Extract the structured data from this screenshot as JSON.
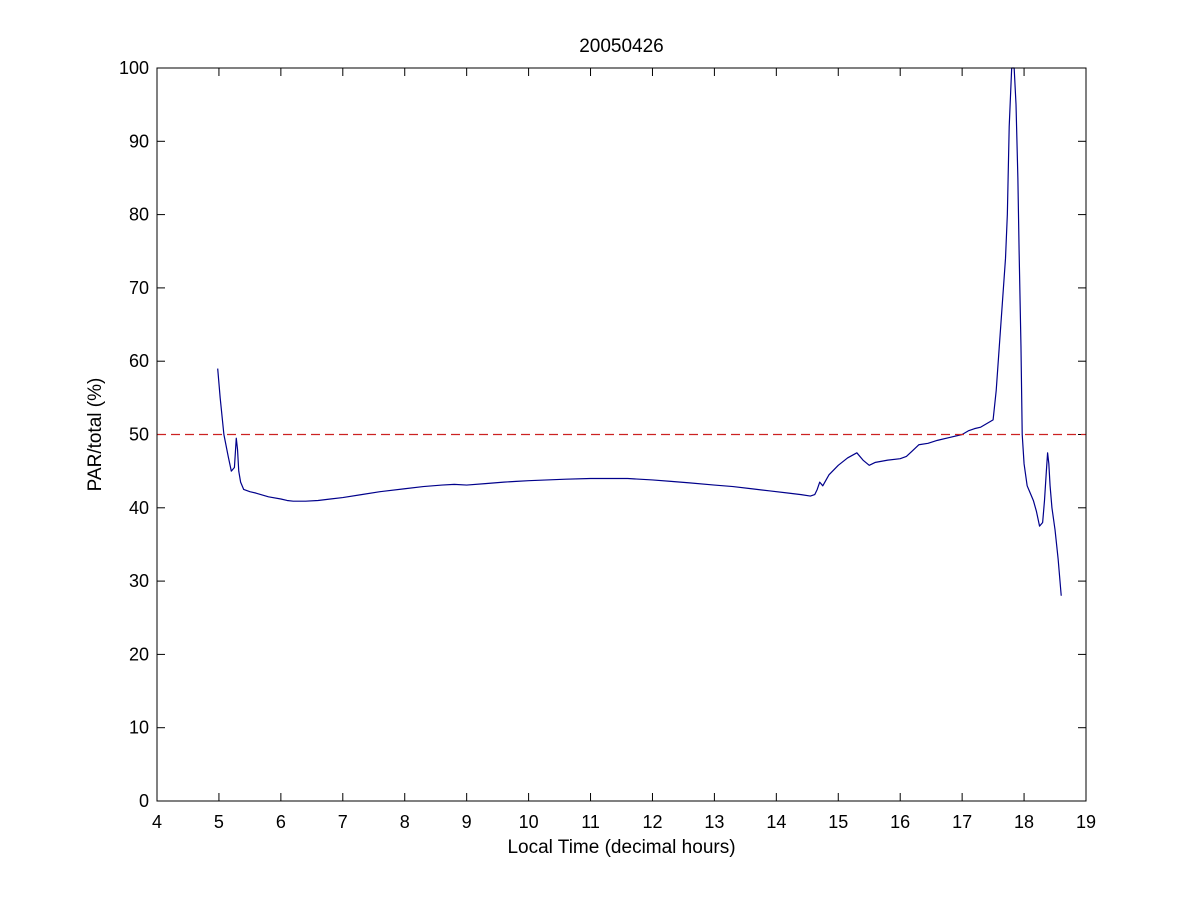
{
  "chart_data": {
    "type": "line",
    "title": "20050426",
    "xlabel": "Local Time (decimal hours)",
    "ylabel": "PAR/total (%)",
    "xlim": [
      4,
      19
    ],
    "ylim": [
      0,
      100
    ],
    "xticks": [
      4,
      5,
      6,
      7,
      8,
      9,
      10,
      11,
      12,
      13,
      14,
      15,
      16,
      17,
      18,
      19
    ],
    "yticks": [
      0,
      10,
      20,
      30,
      40,
      50,
      60,
      70,
      80,
      90,
      100
    ],
    "grid": false,
    "series": [
      {
        "color": "#00008b",
        "x": [
          4.98,
          5.02,
          5.08,
          5.15,
          5.2,
          5.25,
          5.28,
          5.3,
          5.32,
          5.35,
          5.4,
          5.5,
          5.6,
          5.8,
          6.0,
          6.1,
          6.2,
          6.4,
          6.6,
          6.8,
          7.0,
          7.3,
          7.6,
          8.0,
          8.3,
          8.6,
          8.8,
          9.0,
          9.3,
          9.6,
          9.8,
          10.0,
          10.3,
          10.6,
          11.0,
          11.3,
          11.6,
          12.0,
          12.3,
          12.6,
          13.0,
          13.3,
          13.6,
          13.9,
          14.2,
          14.4,
          14.55,
          14.62,
          14.66,
          14.7,
          14.75,
          14.85,
          15.0,
          15.15,
          15.3,
          15.4,
          15.5,
          15.6,
          15.8,
          16.0,
          16.1,
          16.2,
          16.3,
          16.45,
          16.6,
          16.8,
          17.0,
          17.1,
          17.2,
          17.3,
          17.4,
          17.5,
          17.55,
          17.6,
          17.65,
          17.7,
          17.73,
          17.76,
          17.8,
          17.84,
          17.87,
          17.9,
          17.92,
          17.95,
          17.97,
          18.0,
          18.05,
          18.1,
          18.15,
          18.2,
          18.25,
          18.3,
          18.33,
          18.36,
          18.38,
          18.4,
          18.42,
          18.45,
          18.5,
          18.55,
          18.6
        ],
        "y": [
          59,
          55,
          50,
          47,
          45,
          45.5,
          49.5,
          48,
          45,
          43.5,
          42.5,
          42.2,
          42.0,
          41.5,
          41.2,
          41.0,
          40.9,
          40.9,
          41.0,
          41.2,
          41.4,
          41.8,
          42.2,
          42.6,
          42.9,
          43.1,
          43.2,
          43.1,
          43.3,
          43.5,
          43.6,
          43.7,
          43.8,
          43.9,
          44.0,
          44.0,
          44.0,
          43.8,
          43.6,
          43.4,
          43.1,
          42.9,
          42.6,
          42.3,
          42.0,
          41.8,
          41.6,
          41.8,
          42.5,
          43.5,
          43,
          44.5,
          45.8,
          46.8,
          47.5,
          46.5,
          45.8,
          46.2,
          46.5,
          46.7,
          47,
          47.8,
          48.6,
          48.8,
          49.2,
          49.6,
          50.0,
          50.5,
          50.8,
          51.0,
          51.5,
          52.0,
          56,
          62,
          68,
          74,
          80,
          92,
          100,
          100,
          95,
          85,
          75,
          62,
          50,
          46,
          43,
          42,
          41,
          39.5,
          37.5,
          38,
          41,
          45,
          47.5,
          46,
          43,
          40,
          37,
          33,
          28
        ]
      }
    ],
    "reference_lines": [
      {
        "orientation": "horizontal",
        "y": 50,
        "style": "dashed",
        "color": "#cc2222"
      }
    ]
  }
}
